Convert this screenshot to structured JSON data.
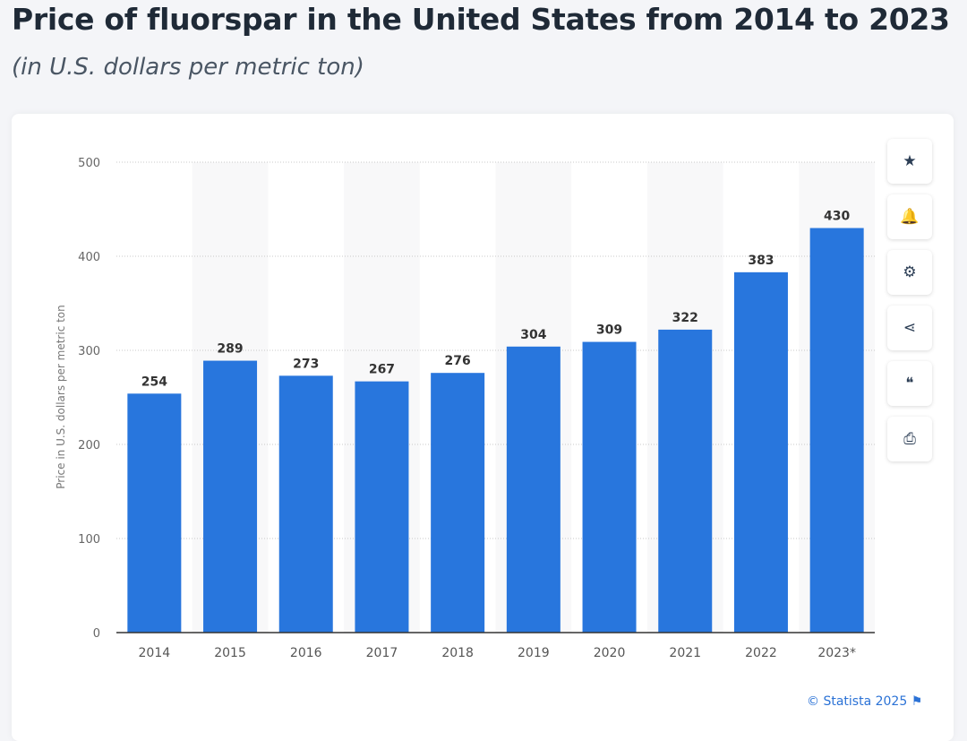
{
  "header": {
    "title": "Price of fluorspar in the United States from 2014 to 2023",
    "subtitle": "(in U.S. dollars per metric ton)"
  },
  "toolbar": [
    {
      "icon": "star-icon",
      "glyph": "★"
    },
    {
      "icon": "bell-icon",
      "glyph": "🔔"
    },
    {
      "icon": "gear-icon",
      "glyph": "⚙"
    },
    {
      "icon": "share-icon",
      "glyph": "⋖"
    },
    {
      "icon": "quote-icon",
      "glyph": "❝"
    },
    {
      "icon": "print-icon",
      "glyph": "⎙"
    }
  ],
  "credit": "© Statista 2025",
  "chart_data": {
    "type": "bar",
    "categories": [
      "2014",
      "2015",
      "2016",
      "2017",
      "2018",
      "2019",
      "2020",
      "2021",
      "2022",
      "2023*"
    ],
    "values": [
      254,
      289,
      273,
      267,
      276,
      304,
      309,
      322,
      383,
      430
    ],
    "ylabel": "Price in U.S. dollars per metric ton",
    "ylim": [
      0,
      500
    ],
    "yticks": [
      0,
      100,
      200,
      300,
      400,
      500
    ],
    "grid": true,
    "bar_color": "#2876dd"
  }
}
